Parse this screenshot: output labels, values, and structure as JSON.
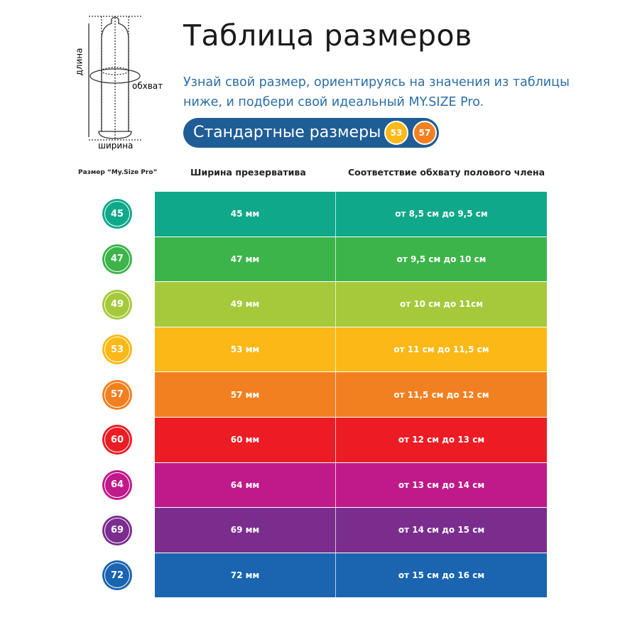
{
  "diagram": {
    "length_label": "длина",
    "girth_label": "обхват",
    "width_label": "ширина"
  },
  "title": "Таблица размеров",
  "subtitle_line1": "Узнай свой размер, ориентируясь на значения из таблицы",
  "subtitle_line2": "ниже, и подбери свой идеальный MY.SIZE Pro.",
  "standard": {
    "label": "Стандартные размеры",
    "badges": [
      {
        "value": "53",
        "color": "#fbb817"
      },
      {
        "value": "57",
        "color": "#f28021"
      }
    ]
  },
  "headers": {
    "size": "Размер “My.Size Pro”",
    "width": "Ширина презерватива",
    "girth": "Соответствие обхвату полового члена"
  },
  "rows": [
    {
      "size": "45",
      "width": "45 мм",
      "girth": "от 8,5 см до 9,5 см",
      "color": "#0fa88a"
    },
    {
      "size": "47",
      "width": "47 мм",
      "girth": "от 9,5 см до 10 см",
      "color": "#3cb44a"
    },
    {
      "size": "49",
      "width": "49 мм",
      "girth": "от 10 см до 11см",
      "color": "#a5c93a"
    },
    {
      "size": "53",
      "width": "53 мм",
      "girth": "от 11 см до 11,5 см",
      "color": "#fbb817"
    },
    {
      "size": "57",
      "width": "57 мм",
      "girth": "от 11,5 см до 12 см",
      "color": "#f28021"
    },
    {
      "size": "60",
      "width": "60 мм",
      "girth": "от 12 см до 13 см",
      "color": "#ec1c24"
    },
    {
      "size": "64",
      "width": "64 мм",
      "girth": "от 13 см до 14 см",
      "color": "#c0198a"
    },
    {
      "size": "69",
      "width": "69 мм",
      "girth": "от 14 см до 15 см",
      "color": "#7b2d8e"
    },
    {
      "size": "72",
      "width": "72 мм",
      "girth": "от 15 см до 16 см",
      "color": "#1a64b0"
    }
  ]
}
